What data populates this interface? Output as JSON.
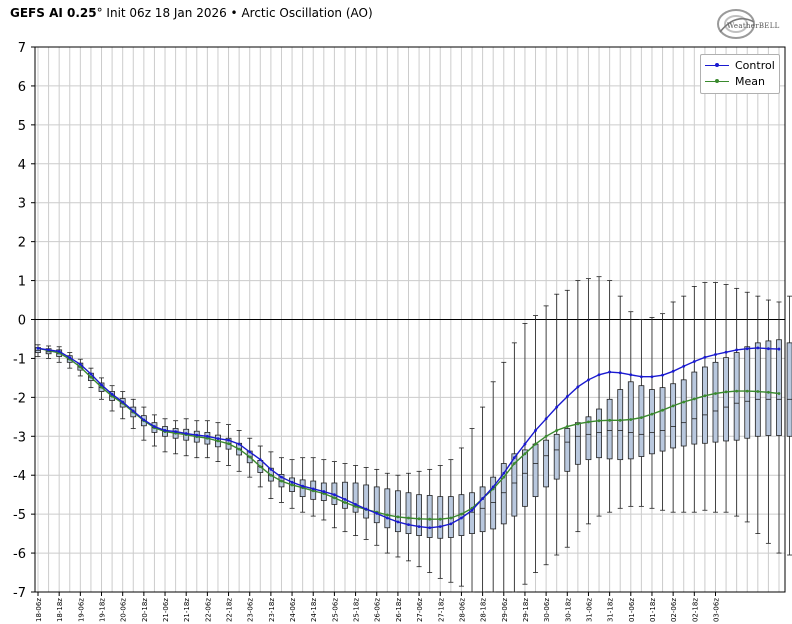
{
  "header": {
    "title_bold": "GEFS AI 0.25",
    "title_degree": "°",
    "title_rest": " Init 06z 18 Jan 2026 • Arctic Oscillation (AO)",
    "logo_text": "WeatherBELL"
  },
  "colors": {
    "control": "#1a1ad0",
    "mean": "#3a8a2e",
    "box_fill": "#b9c8de",
    "box_stroke": "#222222",
    "grid": "#cccccc",
    "zero_line": "#000000"
  },
  "chart_data": {
    "type": "line",
    "title": "Arctic Oscillation (AO)",
    "ylim": [
      -7,
      7
    ],
    "yticks": [
      7,
      6,
      5,
      4,
      3,
      2,
      1,
      0,
      -1,
      -2,
      -3,
      -4,
      -5,
      -6,
      -7
    ],
    "grid": true,
    "legend_placement": "top-right",
    "x_tick_labels": [
      "18-06z",
      "18-18z",
      "19-06z",
      "19-18z",
      "20-06z",
      "20-18z",
      "21-06z",
      "21-18z",
      "22-06z",
      "22-18z",
      "23-06z",
      "23-18z",
      "24-06z",
      "24-18z",
      "25-06z",
      "25-18z",
      "26-06z",
      "26-18z",
      "27-06z",
      "27-18z",
      "28-06z",
      "28-18z",
      "29-06z",
      "29-18z",
      "30-06z",
      "30-18z",
      "31-06z",
      "31-18z",
      "01-06z",
      "01-18z",
      "02-06z",
      "02-18z",
      "03-06z"
    ],
    "series": [
      {
        "name": "Control",
        "values": [
          -0.74,
          -0.78,
          -0.82,
          -0.98,
          -1.15,
          -1.4,
          -1.68,
          -1.92,
          -2.12,
          -2.35,
          -2.58,
          -2.75,
          -2.85,
          -2.88,
          -2.93,
          -2.97,
          -3.0,
          -3.06,
          -3.1,
          -3.2,
          -3.4,
          -3.6,
          -3.85,
          -4.05,
          -4.18,
          -4.28,
          -4.35,
          -4.42,
          -4.5,
          -4.62,
          -4.75,
          -4.87,
          -4.98,
          -5.1,
          -5.2,
          -5.27,
          -5.32,
          -5.35,
          -5.32,
          -5.25,
          -5.1,
          -4.9,
          -4.6,
          -4.3,
          -3.95,
          -3.55,
          -3.2,
          -2.85,
          -2.55,
          -2.25,
          -1.98,
          -1.73,
          -1.55,
          -1.42,
          -1.35,
          -1.37,
          -1.42,
          -1.47,
          -1.47,
          -1.43,
          -1.33,
          -1.2,
          -1.08,
          -0.97,
          -0.9,
          -0.84,
          -0.78,
          -0.75,
          -0.73,
          -0.75,
          -0.76
        ]
      },
      {
        "name": "Mean",
        "values": [
          -0.74,
          -0.8,
          -0.86,
          -1.02,
          -1.22,
          -1.48,
          -1.74,
          -1.97,
          -2.15,
          -2.38,
          -2.6,
          -2.78,
          -2.88,
          -2.92,
          -2.96,
          -3.01,
          -3.05,
          -3.12,
          -3.19,
          -3.33,
          -3.53,
          -3.78,
          -4.0,
          -4.15,
          -4.25,
          -4.32,
          -4.4,
          -4.47,
          -4.58,
          -4.7,
          -4.8,
          -4.88,
          -4.95,
          -5.02,
          -5.07,
          -5.1,
          -5.12,
          -5.13,
          -5.13,
          -5.1,
          -5.0,
          -4.85,
          -4.6,
          -4.35,
          -4.05,
          -3.7,
          -3.45,
          -3.2,
          -3.0,
          -2.85,
          -2.75,
          -2.68,
          -2.63,
          -2.6,
          -2.59,
          -2.59,
          -2.57,
          -2.52,
          -2.43,
          -2.33,
          -2.22,
          -2.12,
          -2.04,
          -1.96,
          -1.9,
          -1.86,
          -1.84,
          -1.84,
          -1.85,
          -1.87,
          -1.9
        ]
      }
    ],
    "boxplots": [
      {
        "i": 0,
        "min": -0.95,
        "q1": -0.85,
        "med": -0.8,
        "q3": -0.72,
        "max": -0.65
      },
      {
        "i": 1,
        "min": -1.0,
        "q1": -0.88,
        "med": -0.83,
        "q3": -0.75,
        "max": -0.68
      },
      {
        "i": 2,
        "min": -1.1,
        "q1": -0.95,
        "med": -0.88,
        "q3": -0.78,
        "max": -0.7
      },
      {
        "i": 3,
        "min": -1.25,
        "q1": -1.1,
        "med": -1.02,
        "q3": -0.93,
        "max": -0.85
      },
      {
        "i": 4,
        "min": -1.45,
        "q1": -1.3,
        "med": -1.22,
        "q3": -1.12,
        "max": -1.02
      },
      {
        "i": 5,
        "min": -1.75,
        "q1": -1.57,
        "med": -1.48,
        "q3": -1.38,
        "max": -1.25
      },
      {
        "i": 6,
        "min": -2.05,
        "q1": -1.85,
        "med": -1.75,
        "q3": -1.63,
        "max": -1.5
      },
      {
        "i": 7,
        "min": -2.35,
        "q1": -2.08,
        "med": -1.97,
        "q3": -1.85,
        "max": -1.7
      },
      {
        "i": 8,
        "min": -2.55,
        "q1": -2.25,
        "med": -2.15,
        "q3": -2.03,
        "max": -1.85
      },
      {
        "i": 9,
        "min": -2.8,
        "q1": -2.5,
        "med": -2.38,
        "q3": -2.25,
        "max": -2.05
      },
      {
        "i": 10,
        "min": -3.1,
        "q1": -2.73,
        "med": -2.6,
        "q3": -2.47,
        "max": -2.25
      },
      {
        "i": 11,
        "min": -3.25,
        "q1": -2.9,
        "med": -2.78,
        "q3": -2.65,
        "max": -2.45
      },
      {
        "i": 12,
        "min": -3.4,
        "q1": -3.0,
        "med": -2.88,
        "q3": -2.75,
        "max": -2.55
      },
      {
        "i": 13,
        "min": -3.45,
        "q1": -3.05,
        "med": -2.92,
        "q3": -2.8,
        "max": -2.6
      },
      {
        "i": 14,
        "min": -3.5,
        "q1": -3.1,
        "med": -2.96,
        "q3": -2.82,
        "max": -2.55
      },
      {
        "i": 15,
        "min": -3.55,
        "q1": -3.15,
        "med": -3.01,
        "q3": -2.87,
        "max": -2.6
      },
      {
        "i": 16,
        "min": -3.55,
        "q1": -3.2,
        "med": -3.05,
        "q3": -2.9,
        "max": -2.6
      },
      {
        "i": 17,
        "min": -3.65,
        "q1": -3.27,
        "med": -3.12,
        "q3": -2.97,
        "max": -2.65
      },
      {
        "i": 18,
        "min": -3.75,
        "q1": -3.33,
        "med": -3.19,
        "q3": -3.05,
        "max": -2.7
      },
      {
        "i": 19,
        "min": -3.9,
        "q1": -3.48,
        "med": -3.33,
        "q3": -3.18,
        "max": -2.85
      },
      {
        "i": 20,
        "min": -4.05,
        "q1": -3.68,
        "med": -3.53,
        "q3": -3.38,
        "max": -3.05
      },
      {
        "i": 21,
        "min": -4.3,
        "q1": -3.93,
        "med": -3.78,
        "q3": -3.62,
        "max": -3.25
      },
      {
        "i": 22,
        "min": -4.6,
        "q1": -4.15,
        "med": -4.0,
        "q3": -3.82,
        "max": -3.4
      },
      {
        "i": 23,
        "min": -4.7,
        "q1": -4.3,
        "med": -4.15,
        "q3": -3.98,
        "max": -3.55
      },
      {
        "i": 24,
        "min": -4.85,
        "q1": -4.42,
        "med": -4.25,
        "q3": -4.07,
        "max": -3.6
      },
      {
        "i": 25,
        "min": -4.95,
        "q1": -4.55,
        "med": -4.32,
        "q3": -4.12,
        "max": -3.55
      },
      {
        "i": 26,
        "min": -5.05,
        "q1": -4.62,
        "med": -4.4,
        "q3": -4.15,
        "max": -3.55
      },
      {
        "i": 27,
        "min": -5.15,
        "q1": -4.65,
        "med": -4.47,
        "q3": -4.2,
        "max": -3.6
      },
      {
        "i": 28,
        "min": -5.35,
        "q1": -4.75,
        "med": -4.58,
        "q3": -4.2,
        "max": -3.65
      },
      {
        "i": 29,
        "min": -5.45,
        "q1": -4.85,
        "med": -4.7,
        "q3": -4.18,
        "max": -3.7
      },
      {
        "i": 30,
        "min": -5.55,
        "q1": -4.95,
        "med": -4.8,
        "q3": -4.2,
        "max": -3.75
      },
      {
        "i": 31,
        "min": -5.65,
        "q1": -5.1,
        "med": -4.88,
        "q3": -4.25,
        "max": -3.8
      },
      {
        "i": 32,
        "min": -5.8,
        "q1": -5.22,
        "med": -4.95,
        "q3": -4.3,
        "max": -3.85
      },
      {
        "i": 33,
        "min": -6.0,
        "q1": -5.35,
        "med": -5.02,
        "q3": -4.35,
        "max": -3.95
      },
      {
        "i": 34,
        "min": -6.1,
        "q1": -5.45,
        "med": -5.07,
        "q3": -4.4,
        "max": -4.0
      },
      {
        "i": 35,
        "min": -6.2,
        "q1": -5.5,
        "med": -5.1,
        "q3": -4.45,
        "max": -3.95
      },
      {
        "i": 36,
        "min": -6.35,
        "q1": -5.55,
        "med": -5.12,
        "q3": -4.5,
        "max": -3.9
      },
      {
        "i": 37,
        "min": -6.5,
        "q1": -5.6,
        "med": -5.13,
        "q3": -4.52,
        "max": -3.85
      },
      {
        "i": 38,
        "min": -6.65,
        "q1": -5.62,
        "med": -5.13,
        "q3": -4.55,
        "max": -3.75
      },
      {
        "i": 39,
        "min": -6.75,
        "q1": -5.6,
        "med": -5.1,
        "q3": -4.55,
        "max": -3.6
      },
      {
        "i": 40,
        "min": -6.85,
        "q1": -5.55,
        "med": -5.0,
        "q3": -4.5,
        "max": -3.3
      },
      {
        "i": 41,
        "min": -7.0,
        "q1": -5.5,
        "med": -4.95,
        "q3": -4.45,
        "max": -2.8
      },
      {
        "i": 42,
        "min": -7.0,
        "q1": -5.45,
        "med": -4.85,
        "q3": -4.3,
        "max": -2.25
      },
      {
        "i": 43,
        "min": -7.0,
        "q1": -5.38,
        "med": -4.7,
        "q3": -4.05,
        "max": -1.6
      },
      {
        "i": 44,
        "min": -7.0,
        "q1": -5.25,
        "med": -4.45,
        "q3": -3.7,
        "max": -1.1
      },
      {
        "i": 45,
        "min": -7.0,
        "q1": -5.05,
        "med": -4.2,
        "q3": -3.45,
        "max": -0.6
      },
      {
        "i": 46,
        "min": -6.8,
        "q1": -4.8,
        "med": -3.95,
        "q3": -3.35,
        "max": -0.1
      },
      {
        "i": 47,
        "min": -6.5,
        "q1": -4.55,
        "med": -3.7,
        "q3": -3.2,
        "max": 0.1
      },
      {
        "i": 48,
        "min": -6.3,
        "q1": -4.3,
        "med": -3.5,
        "q3": -3.1,
        "max": 0.35
      },
      {
        "i": 49,
        "min": -6.05,
        "q1": -4.1,
        "med": -3.35,
        "q3": -2.95,
        "max": 0.65
      },
      {
        "i": 50,
        "min": -5.85,
        "q1": -3.9,
        "med": -3.15,
        "q3": -2.8,
        "max": 0.75
      },
      {
        "i": 51,
        "min": -5.45,
        "q1": -3.72,
        "med": -3.0,
        "q3": -2.65,
        "max": 1.0
      },
      {
        "i": 52,
        "min": -5.25,
        "q1": -3.6,
        "med": -2.95,
        "q3": -2.5,
        "max": 1.05
      },
      {
        "i": 53,
        "min": -5.05,
        "q1": -3.55,
        "med": -2.9,
        "q3": -2.3,
        "max": 1.1
      },
      {
        "i": 54,
        "min": -4.95,
        "q1": -3.58,
        "med": -2.85,
        "q3": -2.05,
        "max": 1.0
      },
      {
        "i": 55,
        "min": -4.85,
        "q1": -3.6,
        "med": -2.85,
        "q3": -1.8,
        "max": 0.6
      },
      {
        "i": 56,
        "min": -4.8,
        "q1": -3.58,
        "med": -2.9,
        "q3": -1.6,
        "max": 0.2
      },
      {
        "i": 57,
        "min": -4.8,
        "q1": -3.52,
        "med": -2.95,
        "q3": -1.7,
        "max": 0.0
      },
      {
        "i": 58,
        "min": -4.85,
        "q1": -3.45,
        "med": -2.9,
        "q3": -1.8,
        "max": 0.05
      },
      {
        "i": 59,
        "min": -4.9,
        "q1": -3.38,
        "med": -2.85,
        "q3": -1.75,
        "max": 0.15
      },
      {
        "i": 60,
        "min": -4.95,
        "q1": -3.3,
        "med": -2.75,
        "q3": -1.65,
        "max": 0.45
      },
      {
        "i": 61,
        "min": -4.95,
        "q1": -3.25,
        "med": -2.65,
        "q3": -1.55,
        "max": 0.6
      },
      {
        "i": 62,
        "min": -4.95,
        "q1": -3.2,
        "med": -2.55,
        "q3": -1.35,
        "max": 0.85
      },
      {
        "i": 63,
        "min": -4.9,
        "q1": -3.18,
        "med": -2.45,
        "q3": -1.22,
        "max": 0.95
      },
      {
        "i": 64,
        "min": -4.95,
        "q1": -3.15,
        "med": -2.35,
        "q3": -1.1,
        "max": 0.95
      },
      {
        "i": 65,
        "min": -4.95,
        "q1": -3.12,
        "med": -2.25,
        "q3": -0.98,
        "max": 0.9
      },
      {
        "i": 66,
        "min": -5.05,
        "q1": -3.1,
        "med": -2.15,
        "q3": -0.85,
        "max": 0.8
      },
      {
        "i": 67,
        "min": -5.2,
        "q1": -3.05,
        "med": -2.1,
        "q3": -0.7,
        "max": 0.7
      },
      {
        "i": 68,
        "min": -5.5,
        "q1": -3.0,
        "med": -2.05,
        "q3": -0.6,
        "max": 0.6
      },
      {
        "i": 69,
        "min": -5.75,
        "q1": -2.98,
        "med": -2.05,
        "q3": -0.55,
        "max": 0.5
      },
      {
        "i": 70,
        "min": -6.0,
        "q1": -2.98,
        "med": -2.05,
        "q3": -0.52,
        "max": 0.45
      },
      {
        "i": 71,
        "min": -6.05,
        "q1": -3.0,
        "med": -2.05,
        "q3": -0.6,
        "max": 0.6
      }
    ]
  }
}
